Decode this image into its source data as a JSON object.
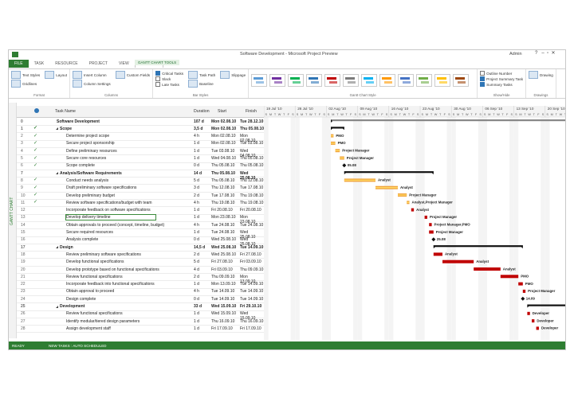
{
  "window": {
    "title": "Software Development - Microsoft Project Preview",
    "user": "Admin",
    "context_tab": "GANTT CHART TOOLS"
  },
  "tabs": [
    "FILE",
    "TASK",
    "RESOURCE",
    "PROJECT",
    "VIEW",
    "FORMAT"
  ],
  "active_tab": 5,
  "ribbon": {
    "groups": [
      {
        "label": "Format",
        "items": [
          {
            "label": "Text Styles"
          },
          {
            "label": "Gridlines"
          },
          {
            "label": "Layout"
          }
        ]
      },
      {
        "label": "Columns",
        "items": [
          {
            "label": "Insert Column"
          },
          {
            "label": "Column Settings"
          },
          {
            "label": "Custom Fields"
          }
        ]
      },
      {
        "label": "Bar Styles",
        "items": [
          {
            "label": "Critical Tasks",
            "checkbox": true,
            "checked": true
          },
          {
            "label": "Slack",
            "checkbox": true,
            "checked": false
          },
          {
            "label": "Late Tasks",
            "checkbox": true,
            "checked": false
          },
          {
            "label": "Task Path"
          },
          {
            "label": "Baseline"
          },
          {
            "label": "Slippage"
          }
        ]
      },
      {
        "label": "Gantt Chart Style",
        "items": []
      },
      {
        "label": "Show/Hide",
        "items": [
          {
            "label": "Outline Number",
            "checkbox": true,
            "checked": false
          },
          {
            "label": "Project Summary Task",
            "checkbox": true,
            "checked": true
          },
          {
            "label": "Summary Tasks",
            "checkbox": true,
            "checked": true
          }
        ]
      },
      {
        "label": "Drawings",
        "items": [
          {
            "label": "Drawing"
          }
        ]
      }
    ]
  },
  "view_label": "GANTT CHART",
  "table": {
    "columns": [
      "Task Name",
      "Duration",
      "Start",
      "Finish"
    ],
    "rows": [
      {
        "id": "0",
        "name": "Software Development",
        "duration": "107 d",
        "start": "Mon 02.08.10",
        "finish": "Tue 28.12.10",
        "level": 0,
        "summary": true
      },
      {
        "id": "1",
        "name": "Scope",
        "duration": "3,5 d",
        "start": "Mon 02.08.10",
        "finish": "Thu 05.08.10",
        "level": 1,
        "summary": true,
        "done": true
      },
      {
        "id": "2",
        "name": "Determine project scope",
        "duration": "4 h",
        "start": "Mon 02.08.10",
        "finish": "Mon 02.08.10",
        "level": 2,
        "done": true,
        "resource": "PMO"
      },
      {
        "id": "3",
        "name": "Secure project sponsorship",
        "duration": "1 d",
        "start": "Mon 02.08.10",
        "finish": "Tue 03.08.10",
        "level": 2,
        "done": true,
        "resource": "PMO"
      },
      {
        "id": "4",
        "name": "Define preliminary resources",
        "duration": "1 d",
        "start": "Tue 03.08.10",
        "finish": "Wed 04.08.10",
        "level": 2,
        "done": true,
        "resource": "Project Manager"
      },
      {
        "id": "5",
        "name": "Secure core resources",
        "duration": "1 d",
        "start": "Wed 04.08.10",
        "finish": "Thu 05.08.10",
        "level": 2,
        "done": true,
        "resource": "Project Manager"
      },
      {
        "id": "6",
        "name": "Scope complete",
        "duration": "0 d",
        "start": "Thu 05.08.10",
        "finish": "Thu 05.08.10",
        "level": 2,
        "done": true,
        "milestone": true,
        "resource": "05.08"
      },
      {
        "id": "7",
        "name": "Analysis/Software Requirements",
        "duration": "14 d",
        "start": "Thu 05.08.10",
        "finish": "Wed 25.08.10",
        "level": 1,
        "summary": true
      },
      {
        "id": "8",
        "name": "Conduct needs analysis",
        "duration": "5 d",
        "start": "Thu 05.08.10",
        "finish": "Thu 12.08.10",
        "level": 2,
        "done": true,
        "resource": "Analyst"
      },
      {
        "id": "9",
        "name": "Draft preliminary software specifications",
        "duration": "3 d",
        "start": "Thu 12.08.10",
        "finish": "Tue 17.08.10",
        "level": 2,
        "done": true,
        "resource": "Analyst"
      },
      {
        "id": "10",
        "name": "Develop preliminary budget",
        "duration": "2 d",
        "start": "Tue 17.08.10",
        "finish": "Thu 19.08.10",
        "level": 2,
        "done": true,
        "resource": "Project Manager"
      },
      {
        "id": "11",
        "name": "Review software specifications/budget with team",
        "duration": "4 h",
        "start": "Thu 19.08.10",
        "finish": "Thu 19.08.10",
        "level": 2,
        "done": true,
        "resource": "Analyst,Project Manager"
      },
      {
        "id": "12",
        "name": "Incorporate feedback on software specifications",
        "duration": "1 d",
        "start": "Fri 20.08.10",
        "finish": "Fri 20.08.10",
        "level": 2,
        "resource": "Analyst"
      },
      {
        "id": "13",
        "name": "Develop delivery timeline",
        "duration": "1 d",
        "start": "Mon 23.08.10",
        "finish": "Mon 23.08.10",
        "level": 2,
        "selected": true,
        "resource": "Project Manager"
      },
      {
        "id": "14",
        "name": "Obtain approvals to proceed (concept, timeline, budget)",
        "duration": "4 h",
        "start": "Tue 24.08.10",
        "finish": "Tue 24.08.10",
        "level": 2,
        "resource": "Project Manager,PMO"
      },
      {
        "id": "15",
        "name": "Secure required resources",
        "duration": "1 d",
        "start": "Tue 24.08.10",
        "finish": "Wed 25.08.10",
        "level": 2,
        "resource": "Project Manager"
      },
      {
        "id": "16",
        "name": "Analysis complete",
        "duration": "0 d",
        "start": "Wed 25.08.10",
        "finish": "Wed 25.08.10",
        "level": 2,
        "milestone": true,
        "resource": "25.08"
      },
      {
        "id": "17",
        "name": "Design",
        "duration": "14,5 d",
        "start": "Wed 25.08.10",
        "finish": "Tue 14.09.10",
        "level": 1,
        "summary": true
      },
      {
        "id": "18",
        "name": "Review preliminary software specifications",
        "duration": "2 d",
        "start": "Wed 25.08.10",
        "finish": "Fri 27.08.10",
        "level": 2,
        "resource": "Analyst"
      },
      {
        "id": "19",
        "name": "Develop functional specifications",
        "duration": "5 d",
        "start": "Fri 27.08.10",
        "finish": "Fri 03.09.10",
        "level": 2,
        "resource": "Analyst"
      },
      {
        "id": "20",
        "name": "Develop prototype based on functional specifications",
        "duration": "4 d",
        "start": "Fri 03.09.10",
        "finish": "Thu 09.09.10",
        "level": 2,
        "resource": "Analyst"
      },
      {
        "id": "21",
        "name": "Review functional specifications",
        "duration": "2 d",
        "start": "Thu 09.09.10",
        "finish": "Mon 13.09.10",
        "level": 2,
        "resource": "PMO"
      },
      {
        "id": "22",
        "name": "Incorporate feedback into functional specifications",
        "duration": "1 d",
        "start": "Mon 13.09.10",
        "finish": "Tue 14.09.10",
        "level": 2,
        "resource": "PMO"
      },
      {
        "id": "23",
        "name": "Obtain approval to proceed",
        "duration": "4 h",
        "start": "Tue 14.09.10",
        "finish": "Tue 14.09.10",
        "level": 2,
        "resource": "Project Manager"
      },
      {
        "id": "24",
        "name": "Design complete",
        "duration": "0 d",
        "start": "Tue 14.09.10",
        "finish": "Tue 14.09.10",
        "level": 2,
        "milestone": true,
        "resource": "14.09"
      },
      {
        "id": "25",
        "name": "Development",
        "duration": "33 d",
        "start": "Wed 15.09.10",
        "finish": "Fri 29.10.10",
        "level": 1,
        "summary": true
      },
      {
        "id": "26",
        "name": "Review functional specifications",
        "duration": "1 d",
        "start": "Wed 15.09.10",
        "finish": "Wed 15.09.10",
        "level": 2,
        "resource": "Developer"
      },
      {
        "id": "27",
        "name": "Identify modular/tiered design parameters",
        "duration": "1 d",
        "start": "Thu 16.09.10",
        "finish": "Thu 16.09.10",
        "level": 2,
        "resource": "Developer"
      },
      {
        "id": "28",
        "name": "Assign development staff",
        "duration": "1 d",
        "start": "Fri 17.09.10",
        "finish": "Fri 17.09.10",
        "level": 2,
        "resource": "Developer"
      }
    ]
  },
  "timeline": {
    "weeks": [
      "19 Jul '10",
      "26 Jul '10",
      "02 Aug '10",
      "09 Aug '10",
      "16 Aug '10",
      "23 Aug '10",
      "30 Aug '10",
      "06 Sep '10",
      "13 Sep '10",
      "20 Sep '10"
    ],
    "days": [
      "S",
      "M",
      "T",
      "W",
      "T",
      "F",
      "S"
    ]
  },
  "status": [
    "READY",
    "NEW TASKS : AUTO SCHEDULED"
  ]
}
